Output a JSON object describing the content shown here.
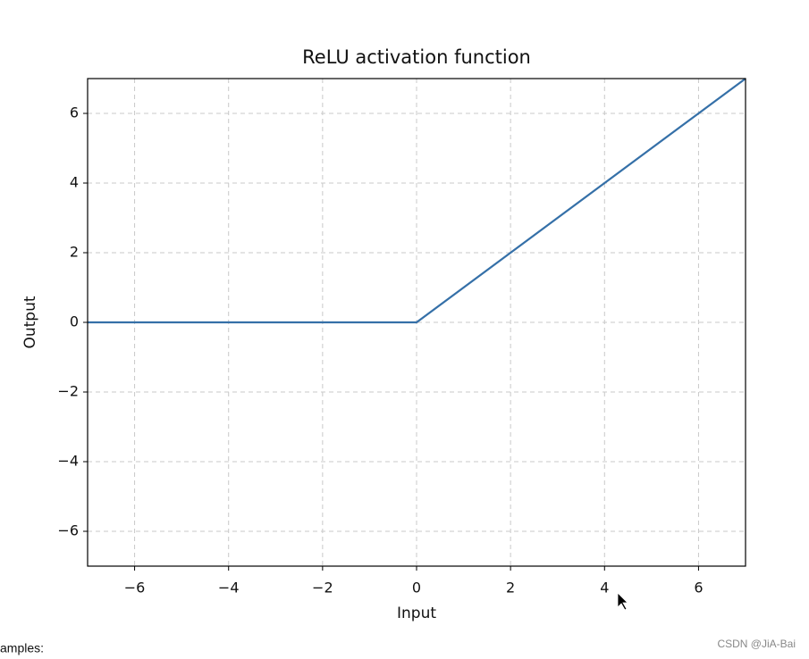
{
  "chart_data": {
    "type": "line",
    "title": "ReLU activation function",
    "x_label": "Input",
    "y_label": "Output",
    "x": [
      -7,
      0,
      7
    ],
    "series": [
      {
        "color": "#3570a8",
        "values": [
          0,
          0,
          7
        ]
      }
    ],
    "xlim": [
      -7,
      7
    ],
    "ylim": [
      -7,
      7
    ],
    "xticks": [
      {
        "value": -6,
        "label": "−6"
      },
      {
        "value": -4,
        "label": "−4"
      },
      {
        "value": -2,
        "label": "−2"
      },
      0,
      2,
      4,
      6
    ],
    "yticks": [
      {
        "value": -6,
        "label": "−6"
      },
      {
        "value": -4,
        "label": "−4"
      },
      {
        "value": -2,
        "label": "−2"
      },
      0,
      2,
      4,
      6
    ],
    "grid": true
  },
  "page": {
    "caption": "amples:",
    "watermark": "CSDN @JiA-Bai"
  }
}
